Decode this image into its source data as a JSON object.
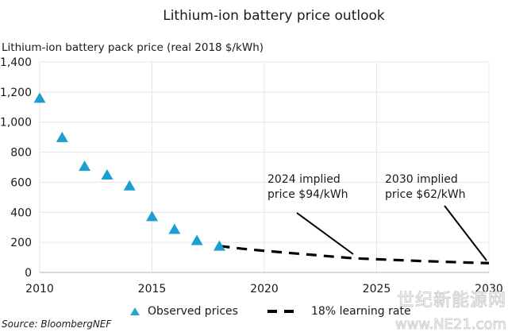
{
  "chart_data": {
    "type": "scatter",
    "title": "Lithium-ion battery price outlook",
    "ylabel": "Lithium-ion battery pack price (real 2018 $/kWh)",
    "xlabel": "",
    "xlim": [
      2010,
      2030
    ],
    "ylim": [
      0,
      1400
    ],
    "x_ticks": [
      2010,
      2015,
      2020,
      2025,
      2030
    ],
    "x_tick_labels": [
      "2010",
      "2015",
      "2020",
      "2025",
      "2030"
    ],
    "y_ticks": [
      0,
      200,
      400,
      600,
      800,
      1000,
      1200,
      1400
    ],
    "y_tick_labels": [
      "0",
      "200",
      "400",
      "600",
      "800",
      "1,000",
      "1,200",
      "1,400"
    ],
    "grid": true,
    "series": [
      {
        "name": "Observed prices",
        "type": "scatter",
        "marker": "triangle",
        "color": "#1a9fd0",
        "x": [
          2010,
          2011,
          2012,
          2013,
          2014,
          2015,
          2016,
          2017,
          2018
        ],
        "values": [
          1160,
          899,
          707,
          650,
          577,
          373,
          288,
          214,
          176
        ]
      },
      {
        "name": "18% learning rate",
        "type": "line",
        "style": "dashed",
        "color": "#000000",
        "x": [
          2018,
          2019,
          2020,
          2021,
          2022,
          2023,
          2024,
          2025,
          2026,
          2027,
          2028,
          2029,
          2030
        ],
        "values": [
          176,
          158,
          144,
          131,
          119,
          106,
          94,
          88,
          82,
          76,
          71,
          66,
          62
        ]
      }
    ],
    "annotations": [
      {
        "lines": [
          "2024 implied",
          "price $94/kWh"
        ],
        "x": 2024,
        "y": 94
      },
      {
        "lines": [
          "2030 implied",
          "price $62/kWh"
        ],
        "x": 2030,
        "y": 62
      }
    ],
    "legend": {
      "placement": "bottom-center",
      "entries": [
        "Observed prices",
        "18% learning rate"
      ]
    },
    "source": "Source: BloombergNEF"
  },
  "watermark": {
    "line1": "世纪新能源网",
    "line2": "www.NE21.com"
  }
}
